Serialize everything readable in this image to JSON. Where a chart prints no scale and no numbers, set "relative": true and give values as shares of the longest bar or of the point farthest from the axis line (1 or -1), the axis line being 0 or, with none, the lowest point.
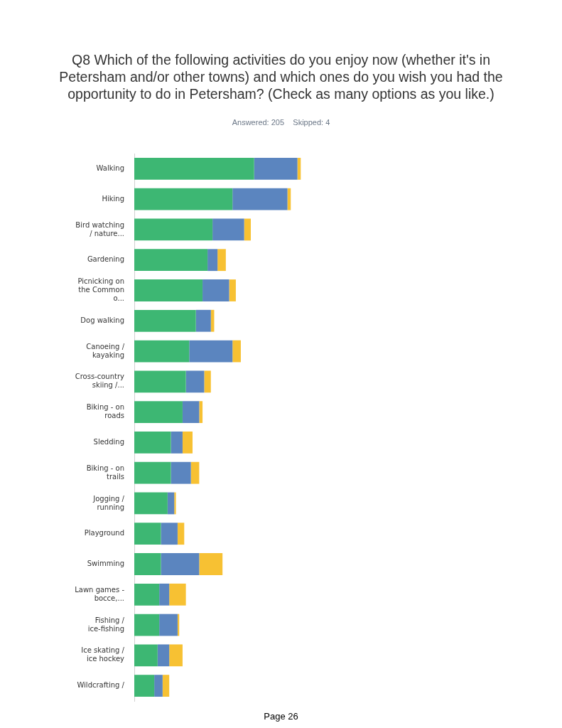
{
  "chart_data": {
    "type": "bar",
    "orientation": "horizontal",
    "stacked": true,
    "relative": true,
    "legend": false,
    "title": "Q8 Which of the following activities do you enjoy now (whether it's in Petersham and/or other towns) and which ones do you wish you had the opportunity to do in Petersham?  (Check as many options as you like.)",
    "subtitle": "Answered: 205    Skipped: 4",
    "annotations": [
      "Page 26"
    ],
    "categories": [
      "Walking",
      "Hiking",
      "Bird watching / nature...",
      "Gardening",
      "Picnicking on the Common o...",
      "Dog walking",
      "Canoeing / kayaking",
      "Cross-country skiing /...",
      "Biking - on roads",
      "Sledding",
      "Biking - on trails",
      "Jogging / running",
      "Playground",
      "Swimming",
      "Lawn games - bocce,...",
      "Fishing / ice-fishing",
      "Ice skating / ice hockey",
      "Wildcrafting /"
    ],
    "series": [
      {
        "color": "#3db773",
        "values": [
          0.72,
          0.59,
          0.47,
          0.44,
          0.41,
          0.37,
          0.33,
          0.31,
          0.29,
          0.22,
          0.22,
          0.2,
          0.16,
          0.16,
          0.15,
          0.15,
          0.14,
          0.12
        ]
      },
      {
        "color": "#5b85bf",
        "values": [
          0.26,
          0.33,
          0.19,
          0.06,
          0.16,
          0.09,
          0.26,
          0.11,
          0.1,
          0.07,
          0.12,
          0.04,
          0.1,
          0.23,
          0.06,
          0.11,
          0.07,
          0.05
        ]
      },
      {
        "color": "#f7c133",
        "values": [
          0.02,
          0.02,
          0.04,
          0.05,
          0.04,
          0.02,
          0.05,
          0.04,
          0.02,
          0.06,
          0.05,
          0.01,
          0.04,
          0.14,
          0.1,
          0.01,
          0.08,
          0.04
        ]
      }
    ]
  }
}
